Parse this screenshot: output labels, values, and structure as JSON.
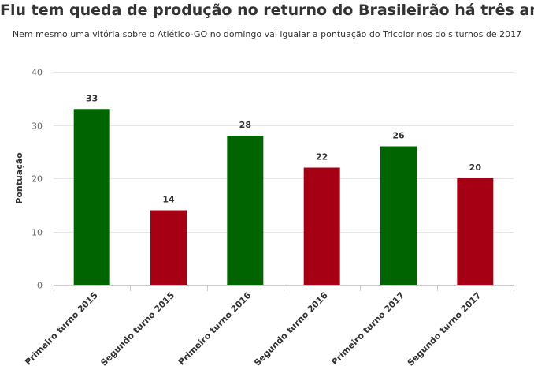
{
  "chart_data": {
    "type": "bar",
    "title": "Flu tem queda de produção no returno do Brasileirão há três anos",
    "subtitle": "Nem mesmo uma vitória sobre o Atlético-GO no domingo vai igualar a pontuação do Tricolor nos dois turnos de 2017",
    "xlabel": "",
    "ylabel": "Pontuação",
    "categories": [
      "Primeiro turno 2015",
      "Segundo turno 2015",
      "Primeiro turno 2016",
      "Segundo turno 2016",
      "Primeiro turno 2017",
      "Segundo turno 2017"
    ],
    "values": [
      33,
      14,
      28,
      22,
      26,
      20
    ],
    "bar_colors": [
      "#006400",
      "#a50014",
      "#006400",
      "#a50014",
      "#006400",
      "#a50014"
    ],
    "ylim": [
      0,
      40
    ],
    "yticks": [
      "0",
      "10",
      "20",
      "30",
      "40"
    ],
    "grid": true,
    "data_labels": true
  }
}
